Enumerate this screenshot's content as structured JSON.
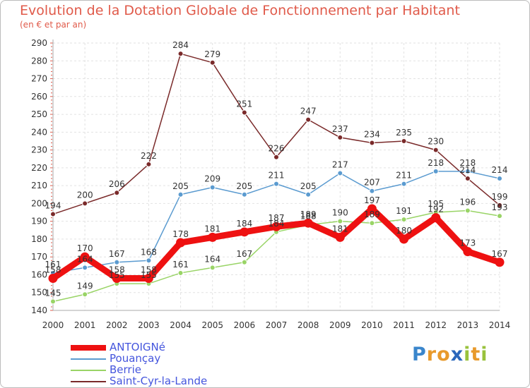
{
  "chart_data": {
    "type": "line",
    "title": "Evolution de la Dotation Globale de Fonctionnement par Habitant",
    "subtitle": "(en € et par an)",
    "x": [
      "2000",
      "2001",
      "2002",
      "2003",
      "2004",
      "2005",
      "2006",
      "2007",
      "2008",
      "2009",
      "2010",
      "2011",
      "2012",
      "2013",
      "2014"
    ],
    "ylim": [
      140,
      290
    ],
    "ystep": 10,
    "series": [
      {
        "name": "Saint-Cyr-la-Lande",
        "color": "#7a2a2a",
        "values": [
          194,
          200,
          206,
          222,
          284,
          279,
          251,
          226,
          247,
          237,
          234,
          235,
          230,
          214,
          199
        ]
      },
      {
        "name": "Pouançay",
        "color": "#5b9bd0",
        "values": [
          161,
          164,
          167,
          168,
          205,
          209,
          205,
          211,
          205,
          217,
          207,
          211,
          218,
          218,
          214
        ]
      },
      {
        "name": "Berrie",
        "color": "#99d466",
        "values": [
          145,
          149,
          155,
          155,
          161,
          164,
          167,
          184,
          188,
          190,
          189,
          191,
          195,
          196,
          193
        ]
      },
      {
        "name": "ANTOIGNé",
        "color": "#ee1111",
        "values": [
          158,
          170,
          158,
          158,
          178,
          181,
          184,
          187,
          189,
          181,
          197,
          180,
          192,
          173,
          167
        ]
      }
    ],
    "legend": [
      "ANTOIGNé",
      "Pouançay",
      "Berrie",
      "Saint-Cyr-la-Lande"
    ]
  },
  "logo": {
    "text": "Proxiti",
    "letters": [
      "P",
      "r",
      "o",
      "x",
      "i",
      "t",
      "i"
    ],
    "colors": [
      "#3a86cc",
      "#e89a2c",
      "#e89a2c",
      "#2a66bb",
      "#99c23c",
      "#e89a2c",
      "#99c23c"
    ]
  }
}
